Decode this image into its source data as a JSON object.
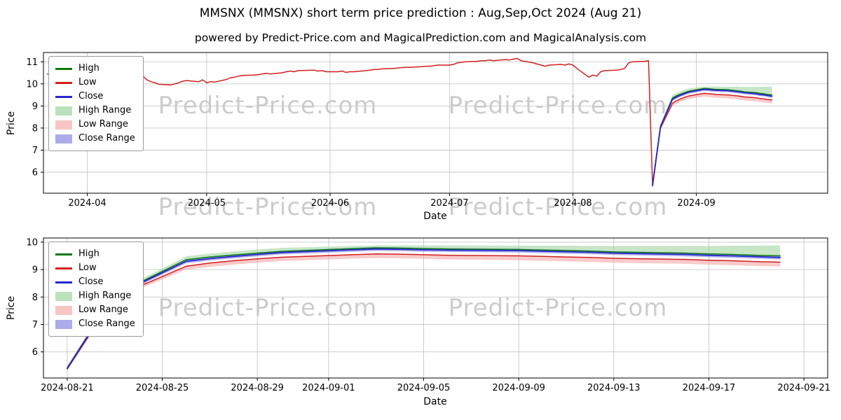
{
  "title": "MMSNX (MMSNX) short term price prediction : Aug,Sep,Oct 2024 (Aug 21)",
  "subtitle": "powered by Predict-Price.com and MagicalPrediction.com and MagicalAnalysis.com",
  "watermark": {
    "text": "Predict-Price.com"
  },
  "colors": {
    "high": "#0c7a0c",
    "low": "#d21f1f",
    "close": "#2727cf",
    "high_range": "#97d197",
    "low_range": "#f4a6a6",
    "close_range": "#8080dd",
    "grid": "#c7c7c7",
    "axis": "#000000"
  },
  "legend": {
    "items": [
      {
        "label": "High",
        "color_key": "high",
        "kind": "line"
      },
      {
        "label": "Low",
        "color_key": "low",
        "kind": "line"
      },
      {
        "label": "Close",
        "color_key": "close",
        "kind": "line"
      },
      {
        "label": "High Range",
        "color_key": "high_range",
        "kind": "patch"
      },
      {
        "label": "Low Range",
        "color_key": "low_range",
        "kind": "patch"
      },
      {
        "label": "Close Range",
        "color_key": "close_range",
        "kind": "patch"
      }
    ]
  },
  "chart_data": {
    "type": "line",
    "charts": [
      {
        "id": "main",
        "title": "full history plus prediction",
        "xlabel": "Date",
        "ylabel": "Price",
        "ylim": [
          5.05,
          11.42
        ],
        "xlim": [
          "2024-03-21",
          "2024-10-04"
        ],
        "yticks": [
          6,
          7,
          8,
          9,
          10,
          11
        ],
        "xticks": [
          {
            "date": "2024-04-01",
            "label": "2024-04"
          },
          {
            "date": "2024-05-01",
            "label": "2024-05"
          },
          {
            "date": "2024-06-01",
            "label": "2024-06"
          },
          {
            "date": "2024-07-01",
            "label": "2024-07"
          },
          {
            "date": "2024-08-01",
            "label": "2024-08"
          },
          {
            "date": "2024-09-01",
            "label": "2024-09"
          }
        ],
        "grid": true,
        "legend_position": "upper left"
      },
      {
        "id": "zoom",
        "title": "prediction zoom window",
        "xlabel": "Date",
        "ylabel": "Price",
        "ylim": [
          5.05,
          10.15
        ],
        "xlim": [
          "2024-08-20",
          "2024-09-22"
        ],
        "yticks": [
          6,
          7,
          8,
          9,
          10
        ],
        "xticks": [
          {
            "date": "2024-08-21",
            "label": "2024-08-21"
          },
          {
            "date": "2024-08-25",
            "label": "2024-08-25"
          },
          {
            "date": "2024-08-29",
            "label": "2024-08-29"
          },
          {
            "date": "2024-09-01",
            "label": "2024-09-01"
          },
          {
            "date": "2024-09-05",
            "label": "2024-09-05"
          },
          {
            "date": "2024-09-09",
            "label": "2024-09-09"
          },
          {
            "date": "2024-09-13",
            "label": "2024-09-13"
          },
          {
            "date": "2024-09-17",
            "label": "2024-09-17"
          },
          {
            "date": "2024-09-21",
            "label": "2024-09-21"
          }
        ],
        "grid": true,
        "legend_position": "upper left"
      }
    ],
    "history": {
      "name": "historical price (Low)",
      "color_key": "low",
      "dates": [
        "2024-03-22",
        "2024-03-25",
        "2024-03-27",
        "2024-03-29",
        "2024-04-01",
        "2024-04-03",
        "2024-04-05",
        "2024-04-08",
        "2024-04-10",
        "2024-04-12",
        "2024-04-15",
        "2024-04-16",
        "2024-04-17",
        "2024-04-18",
        "2024-04-19",
        "2024-04-22",
        "2024-04-23",
        "2024-04-24",
        "2024-04-25",
        "2024-04-26",
        "2024-04-29",
        "2024-04-30",
        "2024-05-01",
        "2024-05-02",
        "2024-05-03",
        "2024-05-06",
        "2024-05-07",
        "2024-05-08",
        "2024-05-09",
        "2024-05-10",
        "2024-05-13",
        "2024-05-14",
        "2024-05-15",
        "2024-05-16",
        "2024-05-17",
        "2024-05-20",
        "2024-05-21",
        "2024-05-22",
        "2024-05-23",
        "2024-05-24",
        "2024-05-28",
        "2024-05-29",
        "2024-05-30",
        "2024-05-31",
        "2024-06-03",
        "2024-06-04",
        "2024-06-05",
        "2024-06-06",
        "2024-06-07",
        "2024-06-10",
        "2024-06-11",
        "2024-06-12",
        "2024-06-13",
        "2024-06-14",
        "2024-06-17",
        "2024-06-18",
        "2024-06-20",
        "2024-06-21",
        "2024-06-24",
        "2024-06-25",
        "2024-06-26",
        "2024-06-27",
        "2024-06-28",
        "2024-07-01",
        "2024-07-02",
        "2024-07-03",
        "2024-07-05",
        "2024-07-08",
        "2024-07-09",
        "2024-07-10",
        "2024-07-11",
        "2024-07-12",
        "2024-07-15",
        "2024-07-16",
        "2024-07-17",
        "2024-07-18",
        "2024-07-19",
        "2024-07-22",
        "2024-07-23",
        "2024-07-24",
        "2024-07-25",
        "2024-07-26",
        "2024-07-29",
        "2024-07-30",
        "2024-07-31",
        "2024-08-01",
        "2024-08-02",
        "2024-08-05",
        "2024-08-06",
        "2024-08-07",
        "2024-08-08",
        "2024-08-09",
        "2024-08-12",
        "2024-08-13",
        "2024-08-14",
        "2024-08-15",
        "2024-08-16",
        "2024-08-19",
        "2024-08-20",
        "2024-08-21"
      ],
      "values": [
        10.44,
        10.45,
        10.42,
        10.48,
        10.45,
        10.4,
        10.45,
        10.42,
        10.38,
        10.42,
        10.35,
        10.18,
        10.1,
        10.05,
        9.98,
        9.95,
        10.0,
        10.05,
        10.12,
        10.15,
        10.1,
        10.18,
        10.05,
        10.1,
        10.08,
        10.2,
        10.28,
        10.3,
        10.35,
        10.38,
        10.4,
        10.42,
        10.45,
        10.48,
        10.45,
        10.5,
        10.55,
        10.58,
        10.55,
        10.6,
        10.62,
        10.58,
        10.6,
        10.55,
        10.55,
        10.58,
        10.52,
        10.55,
        10.55,
        10.6,
        10.62,
        10.65,
        10.65,
        10.68,
        10.7,
        10.72,
        10.75,
        10.75,
        10.78,
        10.8,
        10.8,
        10.82,
        10.85,
        10.85,
        10.88,
        10.95,
        11.0,
        11.02,
        11.05,
        11.05,
        11.08,
        11.05,
        11.1,
        11.08,
        11.12,
        11.15,
        11.05,
        10.95,
        10.9,
        10.85,
        10.8,
        10.85,
        10.88,
        10.85,
        10.9,
        10.85,
        10.7,
        10.3,
        10.4,
        10.35,
        10.55,
        10.6,
        10.62,
        10.65,
        10.7,
        10.95,
        11.0,
        11.02,
        11.05,
        5.4
      ]
    },
    "prediction": {
      "dates": [
        "2024-08-21",
        "2024-08-22",
        "2024-08-23",
        "2024-08-26",
        "2024-08-27",
        "2024-08-28",
        "2024-08-29",
        "2024-08-30",
        "2024-09-02",
        "2024-09-03",
        "2024-09-04",
        "2024-09-05",
        "2024-09-06",
        "2024-09-09",
        "2024-09-10",
        "2024-09-11",
        "2024-09-12",
        "2024-09-13",
        "2024-09-16",
        "2024-09-17",
        "2024-09-18",
        "2024-09-19",
        "2024-09-20"
      ],
      "close": [
        5.4,
        6.75,
        8.05,
        9.3,
        9.4,
        9.48,
        9.55,
        9.62,
        9.72,
        9.75,
        9.74,
        9.72,
        9.71,
        9.69,
        9.67,
        9.65,
        9.63,
        9.6,
        9.55,
        9.52,
        9.5,
        9.47,
        9.44
      ],
      "high": [
        5.42,
        6.78,
        8.08,
        9.36,
        9.46,
        9.53,
        9.6,
        9.66,
        9.76,
        9.79,
        9.78,
        9.76,
        9.75,
        9.73,
        9.71,
        9.69,
        9.67,
        9.64,
        9.6,
        9.57,
        9.55,
        9.52,
        9.5
      ],
      "low": [
        5.38,
        6.7,
        8.0,
        9.12,
        9.24,
        9.32,
        9.39,
        9.45,
        9.54,
        9.57,
        9.56,
        9.54,
        9.52,
        9.5,
        9.48,
        9.46,
        9.44,
        9.41,
        9.37,
        9.34,
        9.32,
        9.29,
        9.27
      ],
      "high_range_top": [
        5.46,
        6.84,
        8.16,
        9.48,
        9.58,
        9.66,
        9.73,
        9.79,
        9.86,
        9.88,
        9.88,
        9.88,
        9.88,
        9.87,
        9.87,
        9.87,
        9.86,
        9.86,
        9.86,
        9.86,
        9.87,
        9.87,
        9.88
      ],
      "low_range_bottom": [
        5.34,
        6.63,
        7.92,
        9.0,
        9.1,
        9.18,
        9.25,
        9.31,
        9.4,
        9.42,
        9.41,
        9.39,
        9.37,
        9.34,
        9.32,
        9.3,
        9.28,
        9.25,
        9.21,
        9.18,
        9.16,
        9.13,
        9.11
      ],
      "close_range_top": [
        5.47,
        6.82,
        8.12,
        9.37,
        9.47,
        9.55,
        9.62,
        9.69,
        9.79,
        9.82,
        9.81,
        9.79,
        9.78,
        9.76,
        9.74,
        9.72,
        9.7,
        9.67,
        9.62,
        9.59,
        9.57,
        9.54,
        9.51
      ],
      "close_range_bottom": [
        5.33,
        6.68,
        7.98,
        9.23,
        9.33,
        9.41,
        9.48,
        9.55,
        9.65,
        9.68,
        9.67,
        9.65,
        9.64,
        9.62,
        9.6,
        9.58,
        9.56,
        9.53,
        9.48,
        9.45,
        9.43,
        9.4,
        9.37
      ]
    }
  }
}
